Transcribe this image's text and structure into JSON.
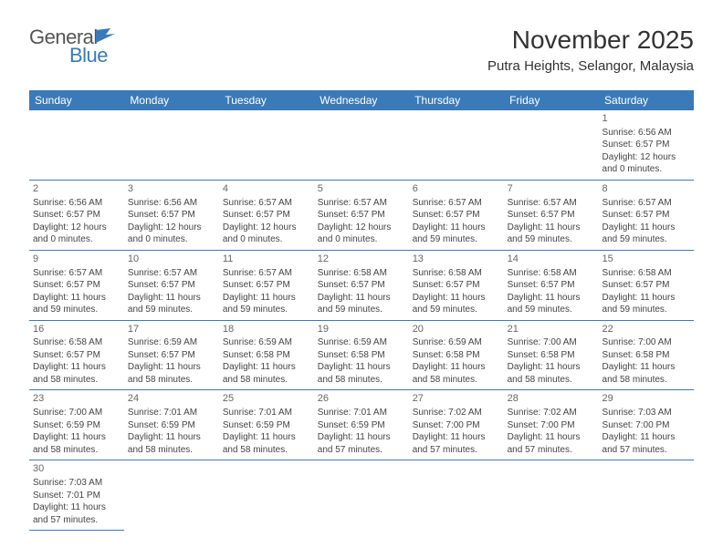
{
  "logo": {
    "text1": "General",
    "text2": "Blue"
  },
  "title": "November 2025",
  "location": "Putra Heights, Selangor, Malaysia",
  "colors": {
    "header_bg": "#3a7ab8",
    "header_text": "#ffffff",
    "border": "#3a7ab8",
    "body_text": "#444444",
    "daynum": "#666666",
    "logo_gray": "#555555",
    "logo_blue": "#3a7ab8"
  },
  "fonts": {
    "month_title_size": 28,
    "location_size": 15,
    "header_cell_size": 12,
    "cell_size": 10,
    "daynum_size": 11
  },
  "weekdays": [
    "Sunday",
    "Monday",
    "Tuesday",
    "Wednesday",
    "Thursday",
    "Friday",
    "Saturday"
  ],
  "grid": [
    [
      null,
      null,
      null,
      null,
      null,
      null,
      {
        "n": "1",
        "sr": "6:56 AM",
        "ss": "6:57 PM",
        "dl": "12 hours and 0 minutes."
      }
    ],
    [
      {
        "n": "2",
        "sr": "6:56 AM",
        "ss": "6:57 PM",
        "dl": "12 hours and 0 minutes."
      },
      {
        "n": "3",
        "sr": "6:56 AM",
        "ss": "6:57 PM",
        "dl": "12 hours and 0 minutes."
      },
      {
        "n": "4",
        "sr": "6:57 AM",
        "ss": "6:57 PM",
        "dl": "12 hours and 0 minutes."
      },
      {
        "n": "5",
        "sr": "6:57 AM",
        "ss": "6:57 PM",
        "dl": "12 hours and 0 minutes."
      },
      {
        "n": "6",
        "sr": "6:57 AM",
        "ss": "6:57 PM",
        "dl": "11 hours and 59 minutes."
      },
      {
        "n": "7",
        "sr": "6:57 AM",
        "ss": "6:57 PM",
        "dl": "11 hours and 59 minutes."
      },
      {
        "n": "8",
        "sr": "6:57 AM",
        "ss": "6:57 PM",
        "dl": "11 hours and 59 minutes."
      }
    ],
    [
      {
        "n": "9",
        "sr": "6:57 AM",
        "ss": "6:57 PM",
        "dl": "11 hours and 59 minutes."
      },
      {
        "n": "10",
        "sr": "6:57 AM",
        "ss": "6:57 PM",
        "dl": "11 hours and 59 minutes."
      },
      {
        "n": "11",
        "sr": "6:57 AM",
        "ss": "6:57 PM",
        "dl": "11 hours and 59 minutes."
      },
      {
        "n": "12",
        "sr": "6:58 AM",
        "ss": "6:57 PM",
        "dl": "11 hours and 59 minutes."
      },
      {
        "n": "13",
        "sr": "6:58 AM",
        "ss": "6:57 PM",
        "dl": "11 hours and 59 minutes."
      },
      {
        "n": "14",
        "sr": "6:58 AM",
        "ss": "6:57 PM",
        "dl": "11 hours and 59 minutes."
      },
      {
        "n": "15",
        "sr": "6:58 AM",
        "ss": "6:57 PM",
        "dl": "11 hours and 59 minutes."
      }
    ],
    [
      {
        "n": "16",
        "sr": "6:58 AM",
        "ss": "6:57 PM",
        "dl": "11 hours and 58 minutes."
      },
      {
        "n": "17",
        "sr": "6:59 AM",
        "ss": "6:57 PM",
        "dl": "11 hours and 58 minutes."
      },
      {
        "n": "18",
        "sr": "6:59 AM",
        "ss": "6:58 PM",
        "dl": "11 hours and 58 minutes."
      },
      {
        "n": "19",
        "sr": "6:59 AM",
        "ss": "6:58 PM",
        "dl": "11 hours and 58 minutes."
      },
      {
        "n": "20",
        "sr": "6:59 AM",
        "ss": "6:58 PM",
        "dl": "11 hours and 58 minutes."
      },
      {
        "n": "21",
        "sr": "7:00 AM",
        "ss": "6:58 PM",
        "dl": "11 hours and 58 minutes."
      },
      {
        "n": "22",
        "sr": "7:00 AM",
        "ss": "6:58 PM",
        "dl": "11 hours and 58 minutes."
      }
    ],
    [
      {
        "n": "23",
        "sr": "7:00 AM",
        "ss": "6:59 PM",
        "dl": "11 hours and 58 minutes."
      },
      {
        "n": "24",
        "sr": "7:01 AM",
        "ss": "6:59 PM",
        "dl": "11 hours and 58 minutes."
      },
      {
        "n": "25",
        "sr": "7:01 AM",
        "ss": "6:59 PM",
        "dl": "11 hours and 58 minutes."
      },
      {
        "n": "26",
        "sr": "7:01 AM",
        "ss": "6:59 PM",
        "dl": "11 hours and 57 minutes."
      },
      {
        "n": "27",
        "sr": "7:02 AM",
        "ss": "7:00 PM",
        "dl": "11 hours and 57 minutes."
      },
      {
        "n": "28",
        "sr": "7:02 AM",
        "ss": "7:00 PM",
        "dl": "11 hours and 57 minutes."
      },
      {
        "n": "29",
        "sr": "7:03 AM",
        "ss": "7:00 PM",
        "dl": "11 hours and 57 minutes."
      }
    ],
    [
      {
        "n": "30",
        "sr": "7:03 AM",
        "ss": "7:01 PM",
        "dl": "11 hours and 57 minutes."
      },
      null,
      null,
      null,
      null,
      null,
      null
    ]
  ],
  "labels": {
    "sunrise": "Sunrise:",
    "sunset": "Sunset:",
    "daylight": "Daylight:"
  }
}
